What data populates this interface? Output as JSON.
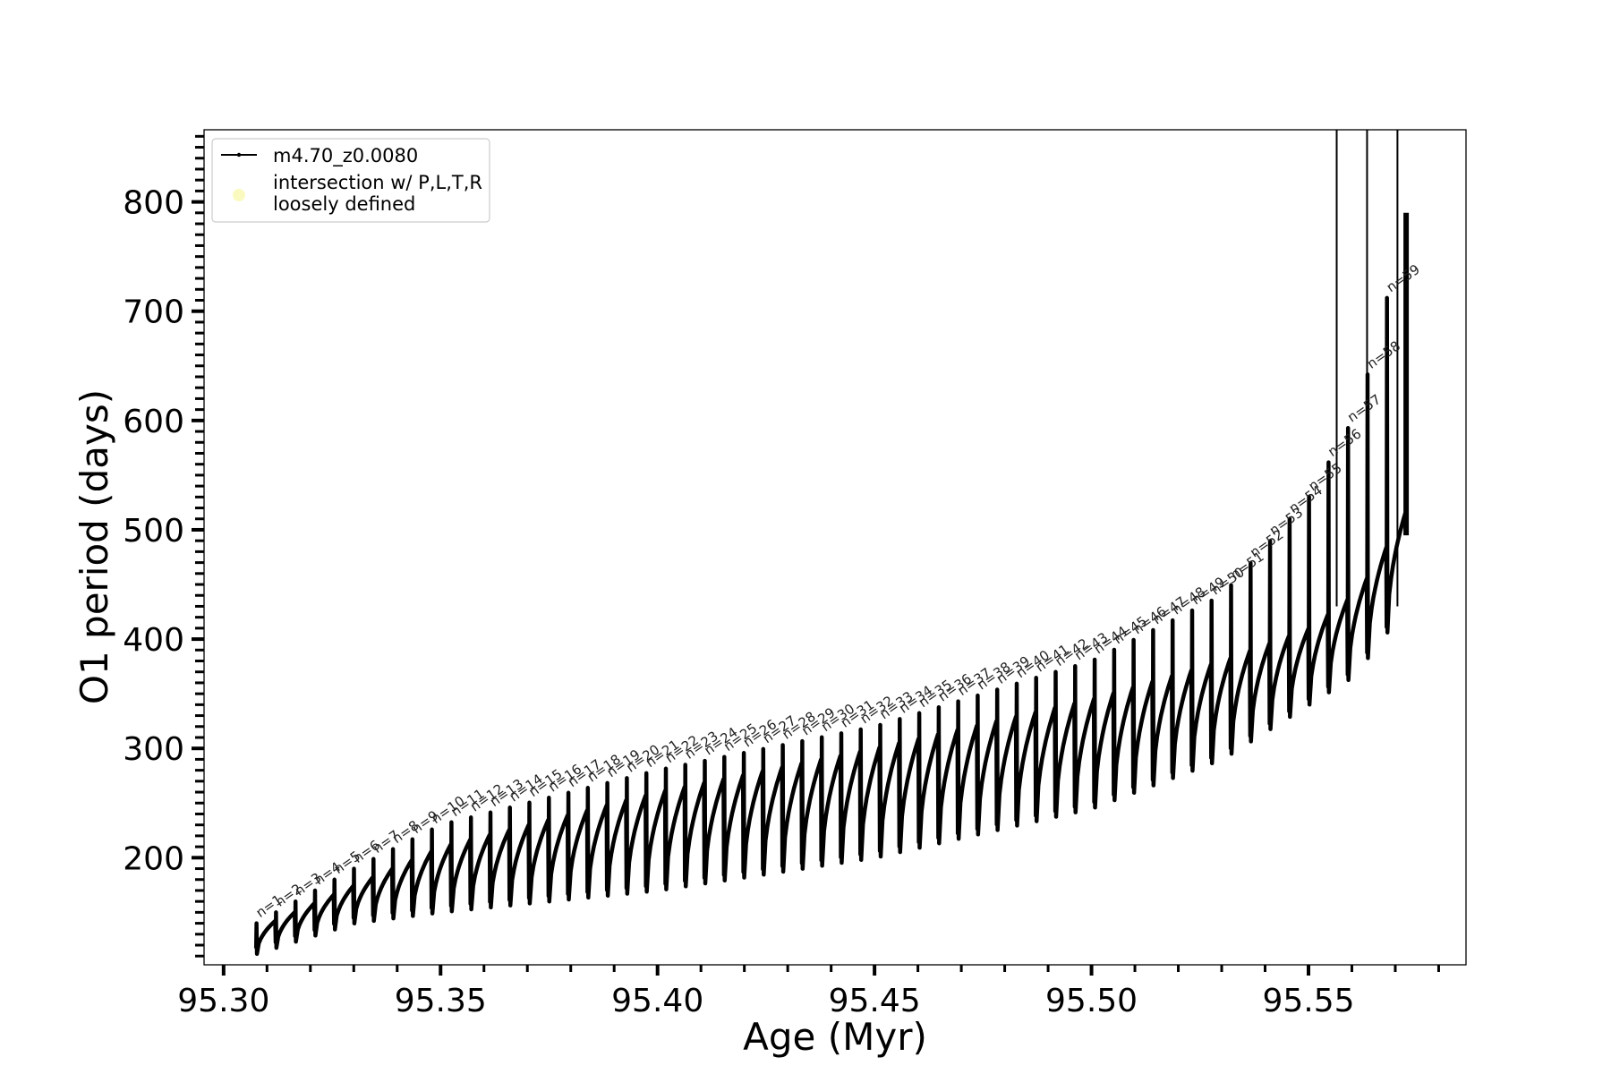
{
  "chart_data": {
    "type": "line",
    "title": "",
    "xlabel": "Age (Myr)",
    "ylabel": "O1 period (days)",
    "xlim": [
      95.2955,
      95.5863
    ],
    "ylim": [
      102,
      866
    ],
    "xticks": [
      95.3,
      95.35,
      95.4,
      95.45,
      95.5,
      95.55
    ],
    "xtick_labels": [
      "95.30",
      "95.35",
      "95.40",
      "95.45",
      "95.50",
      "95.55"
    ],
    "yticks": [
      200,
      300,
      400,
      500,
      600,
      700,
      800
    ],
    "ytick_labels": [
      "200",
      "300",
      "400",
      "500",
      "600",
      "700",
      "800"
    ],
    "grid": false,
    "legend_position": "top-left",
    "series": [
      {
        "name": "m4.70_z0.0080",
        "color": "#000000",
        "x_start": 95.3075,
        "x_end": 95.5725,
        "pulse_count": 59,
        "trend_x": [
          95.3075,
          95.33,
          95.35,
          95.4,
          95.45,
          95.5,
          95.53,
          95.55,
          95.56,
          95.565,
          95.5725
        ],
        "trend_low": [
          112,
          140,
          150,
          170,
          200,
          245,
          290,
          340,
          365,
          390,
          430
        ],
        "trend_high": [
          135,
          175,
          210,
          260,
          300,
          345,
          380,
          410,
          440,
          465,
          520
        ],
        "trend_peak": [
          140,
          190,
          230,
          280,
          320,
          380,
          440,
          530,
          600,
          660,
          790
        ]
      },
      {
        "name": "intersection w/ P,L,T,R\nloosely defined",
        "color": "#fafac0",
        "points": []
      }
    ],
    "annotations": [
      "n=1",
      "n=2",
      "n=3",
      "n=4",
      "n=5",
      "n=6",
      "n=7",
      "n=8",
      "n=9",
      "n=10",
      "n=11",
      "n=12",
      "n=13",
      "n=14",
      "n=15",
      "n=16",
      "n=17",
      "n=18",
      "n=19",
      "n=20",
      "n=21",
      "n=22",
      "n=23",
      "n=24",
      "n=25",
      "n=26",
      "n=27",
      "n=28",
      "n=29",
      "n=30",
      "n=31",
      "n=32",
      "n=33",
      "n=34",
      "n=35",
      "n=36",
      "n=37",
      "n=38",
      "n=39",
      "n=40",
      "n=41",
      "n=42",
      "n=43",
      "n=44",
      "n=45",
      "n=46",
      "n=47",
      "n=48",
      "n=49",
      "n=50",
      "n=51",
      "n=52",
      "n=53",
      "n=54",
      "n=55",
      "n=56",
      "n=57",
      "n=58",
      "n=59"
    ]
  }
}
